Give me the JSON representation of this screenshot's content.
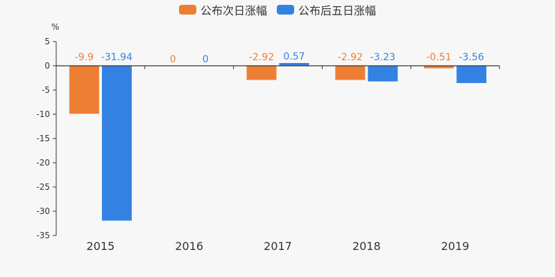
{
  "legend": [
    {
      "label": "公布次日涨幅",
      "color": "#ed7f34"
    },
    {
      "label": "公布后五日涨幅",
      "color": "#3382e3"
    }
  ],
  "chart_data": {
    "type": "bar",
    "title": "",
    "xlabel": "",
    "ylabel": "%",
    "categories": [
      "2015",
      "2016",
      "2017",
      "2018",
      "2019"
    ],
    "series": [
      {
        "name": "公布次日涨幅",
        "color": "#ed7f34",
        "values": [
          -9.9,
          0,
          -2.92,
          -2.92,
          -0.51
        ]
      },
      {
        "name": "公布后五日涨幅",
        "color": "#3382e3",
        "values": [
          -31.94,
          0,
          0.57,
          -3.23,
          -3.56
        ]
      }
    ],
    "ylim": [
      -35,
      5
    ],
    "yticks": [
      5,
      0,
      -5,
      -10,
      -15,
      -20,
      -25,
      -30,
      -35
    ],
    "grid": false,
    "legend_position": "top"
  }
}
